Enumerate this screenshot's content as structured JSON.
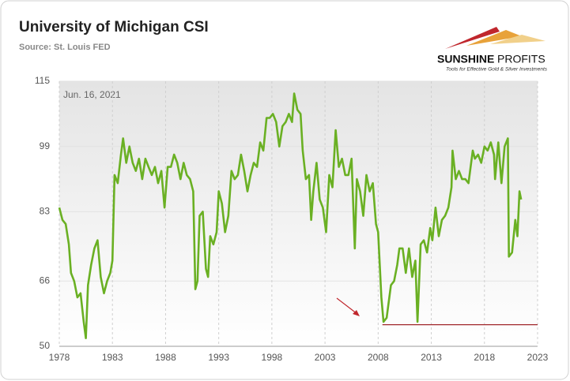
{
  "chart_data": {
    "type": "line",
    "title": "University of Michigan CSI",
    "source": "Source: St. Louis FED",
    "annotation": "Jun. 16, 2021",
    "logo_brand": "SUNSHINE",
    "logo_brand2": "PROFITS",
    "logo_tagline": "Tools for Effective Gold & Silver Investments",
    "color": "#6ab023",
    "xlim": [
      1978,
      2023
    ],
    "xticks": [
      1978,
      1983,
      1988,
      1993,
      1998,
      2003,
      2008,
      2013,
      2018,
      2023
    ],
    "ylim": [
      50,
      115
    ],
    "yticks": [
      50,
      66,
      83,
      99,
      115
    ],
    "grid": true,
    "x": [
      1978.0,
      1978.3,
      1978.6,
      1978.9,
      1979.1,
      1979.4,
      1979.7,
      1980.0,
      1980.3,
      1980.5,
      1980.7,
      1981.0,
      1981.3,
      1981.6,
      1981.9,
      1982.2,
      1982.5,
      1982.8,
      1983.0,
      1983.2,
      1983.5,
      1983.8,
      1984.0,
      1984.3,
      1984.6,
      1984.9,
      1985.2,
      1985.5,
      1985.8,
      1986.1,
      1986.4,
      1986.7,
      1987.0,
      1987.3,
      1987.6,
      1987.9,
      1988.2,
      1988.5,
      1988.8,
      1989.1,
      1989.4,
      1989.7,
      1990.0,
      1990.3,
      1990.6,
      1990.8,
      1991.0,
      1991.2,
      1991.5,
      1991.8,
      1992.0,
      1992.2,
      1992.5,
      1992.8,
      1993.0,
      1993.3,
      1993.6,
      1993.9,
      1994.2,
      1994.5,
      1994.8,
      1995.1,
      1995.4,
      1995.7,
      1996.0,
      1996.3,
      1996.6,
      1996.9,
      1997.2,
      1997.5,
      1997.8,
      1998.1,
      1998.4,
      1998.7,
      1999.0,
      1999.3,
      1999.6,
      1999.9,
      2000.1,
      2000.4,
      2000.7,
      2000.9,
      2001.2,
      2001.5,
      2001.7,
      2001.9,
      2002.2,
      2002.5,
      2002.8,
      2003.1,
      2003.4,
      2003.7,
      2004.0,
      2004.3,
      2004.6,
      2004.9,
      2005.2,
      2005.5,
      2005.8,
      2006.0,
      2006.3,
      2006.6,
      2006.9,
      2007.2,
      2007.5,
      2007.8,
      2008.0,
      2008.3,
      2008.5,
      2008.8,
      2009.0,
      2009.2,
      2009.5,
      2009.8,
      2010.0,
      2010.3,
      2010.6,
      2010.9,
      2011.2,
      2011.5,
      2011.7,
      2012.0,
      2012.3,
      2012.6,
      2012.9,
      2013.1,
      2013.4,
      2013.7,
      2014.0,
      2014.3,
      2014.6,
      2014.9,
      2015.0,
      2015.3,
      2015.6,
      2015.9,
      2016.2,
      2016.5,
      2016.9,
      2017.1,
      2017.4,
      2017.7,
      2018.0,
      2018.3,
      2018.6,
      2018.9,
      2019.0,
      2019.3,
      2019.6,
      2019.9,
      2020.2,
      2020.3,
      2020.6,
      2020.9,
      2021.1,
      2021.3,
      2021.45
    ],
    "values": [
      84,
      81,
      80,
      75,
      68,
      66,
      62,
      63,
      56,
      52,
      65,
      70,
      74,
      76,
      67,
      63,
      66,
      68,
      71,
      92,
      90,
      97,
      101,
      95,
      99,
      95,
      93,
      96,
      91,
      96,
      94,
      92,
      94,
      90,
      93,
      84,
      94,
      94,
      97,
      95,
      91,
      95,
      92,
      91,
      88,
      64,
      66,
      82,
      83,
      69,
      67,
      77,
      75,
      78,
      88,
      85,
      78,
      82,
      93,
      91,
      92,
      97,
      93,
      88,
      92,
      95,
      94,
      100,
      98,
      106,
      106,
      107,
      105,
      99,
      104,
      105,
      107,
      105,
      112,
      108,
      107,
      98,
      91,
      92,
      81,
      88,
      95,
      86,
      84,
      78,
      92,
      89,
      103,
      94,
      96,
      92,
      92,
      96,
      74,
      91,
      88,
      82,
      92,
      88,
      90,
      80,
      78,
      62,
      56,
      57,
      61,
      65,
      66,
      70,
      74,
      74,
      68,
      74,
      67,
      71,
      56,
      75,
      76,
      73,
      79,
      76,
      84,
      77,
      81,
      82,
      84,
      89,
      98,
      91,
      93,
      91,
      91,
      90,
      98,
      96,
      97,
      95,
      99,
      98,
      100,
      97,
      91,
      100,
      90,
      99,
      101,
      72,
      73,
      81,
      77,
      88,
      86
    ],
    "reference_line": {
      "y": 55.3,
      "x": [
        2008.4,
        2023
      ],
      "color": "#a0262a"
    }
  }
}
